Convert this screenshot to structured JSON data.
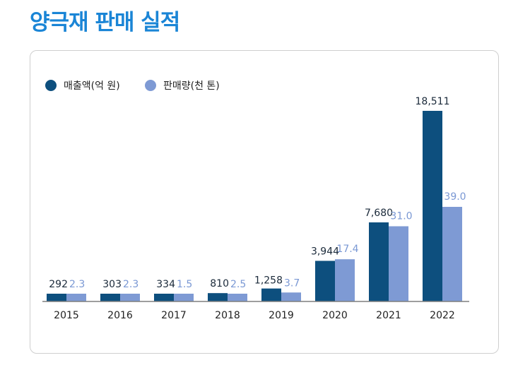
{
  "page": {
    "title": "양극재 판매 실적"
  },
  "colors": {
    "title": "#1a85d6",
    "series_a": "#0d4f7e",
    "series_b": "#7e9ad4",
    "label_b": "#7a98d4",
    "axis": "#7f7f7f"
  },
  "chart_data": {
    "type": "bar",
    "categories": [
      "2015",
      "2016",
      "2017",
      "2018",
      "2019",
      "2020",
      "2021",
      "2022"
    ],
    "series": [
      {
        "name": "매출액(억 원)",
        "values": [
          292,
          303,
          334,
          810,
          1258,
          3944,
          7680,
          18511
        ],
        "labels": [
          "292",
          "303",
          "334",
          "810",
          "1,258",
          "3,944",
          "7,680",
          "18,511"
        ],
        "color": "#0d4f7e"
      },
      {
        "name": "판매량(천 톤)",
        "values": [
          2.3,
          2.3,
          1.5,
          2.5,
          3.7,
          17.4,
          31.0,
          39.0
        ],
        "labels": [
          "2.3",
          "2.3",
          "1.5",
          "2.5",
          "3.7",
          "17.4",
          "31.0",
          "39.0"
        ],
        "color": "#7e9ad4"
      }
    ],
    "legend_position": "top-left",
    "grid": false,
    "y_axis_visible": false
  }
}
